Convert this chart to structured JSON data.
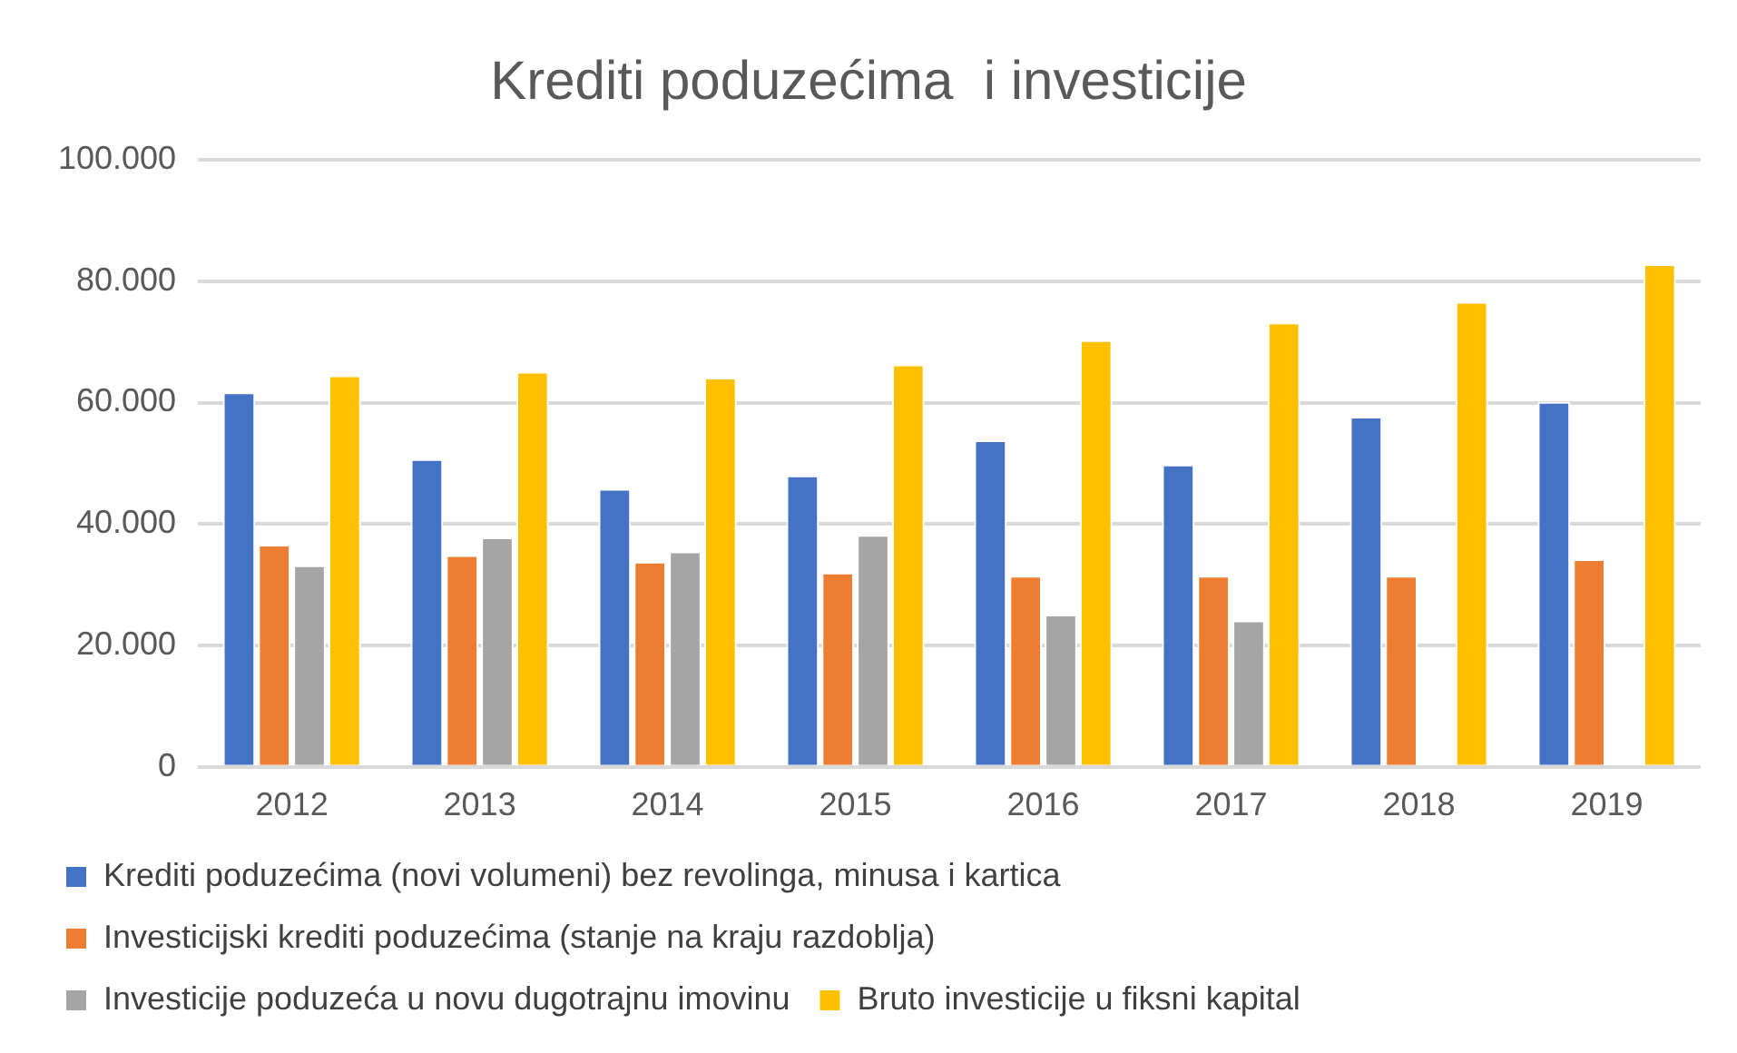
{
  "chart_data": {
    "type": "bar",
    "title": "Krediti poduzećima  i investicije",
    "categories": [
      "2012",
      "2013",
      "2014",
      "2015",
      "2016",
      "2017",
      "2018",
      "2019"
    ],
    "series": [
      {
        "name": "Krediti poduzećima (novi volumeni) bez revolinga, minusa i kartica",
        "color": "#4472c4",
        "values": [
          61700,
          50700,
          45800,
          48000,
          53800,
          49800,
          57700,
          60100
        ]
      },
      {
        "name": "Investicijski krediti poduzećima (stanje na kraju razdoblja)",
        "color": "#ed7d31",
        "values": [
          36600,
          34900,
          33800,
          32000,
          31500,
          31500,
          31500,
          34200
        ]
      },
      {
        "name": "Investicije poduzeća u novu dugotrajnu imovinu",
        "color": "#a5a5a5",
        "values": [
          33200,
          37800,
          35500,
          38200,
          25100,
          24100,
          null,
          null
        ]
      },
      {
        "name": "Bruto investicije u fiksni kapital",
        "color": "#ffc000",
        "values": [
          64500,
          65100,
          64100,
          66300,
          70300,
          73200,
          76600,
          82800
        ]
      }
    ],
    "ylim": [
      0,
      100000
    ],
    "yticks": [
      {
        "value": 0,
        "label": "0"
      },
      {
        "value": 20000,
        "label": "20.000"
      },
      {
        "value": 40000,
        "label": "40.000"
      },
      {
        "value": 60000,
        "label": "60.000"
      },
      {
        "value": 80000,
        "label": "80.000"
      },
      {
        "value": 100000,
        "label": "100.000"
      }
    ],
    "grid": "y",
    "legend": "bottom"
  }
}
